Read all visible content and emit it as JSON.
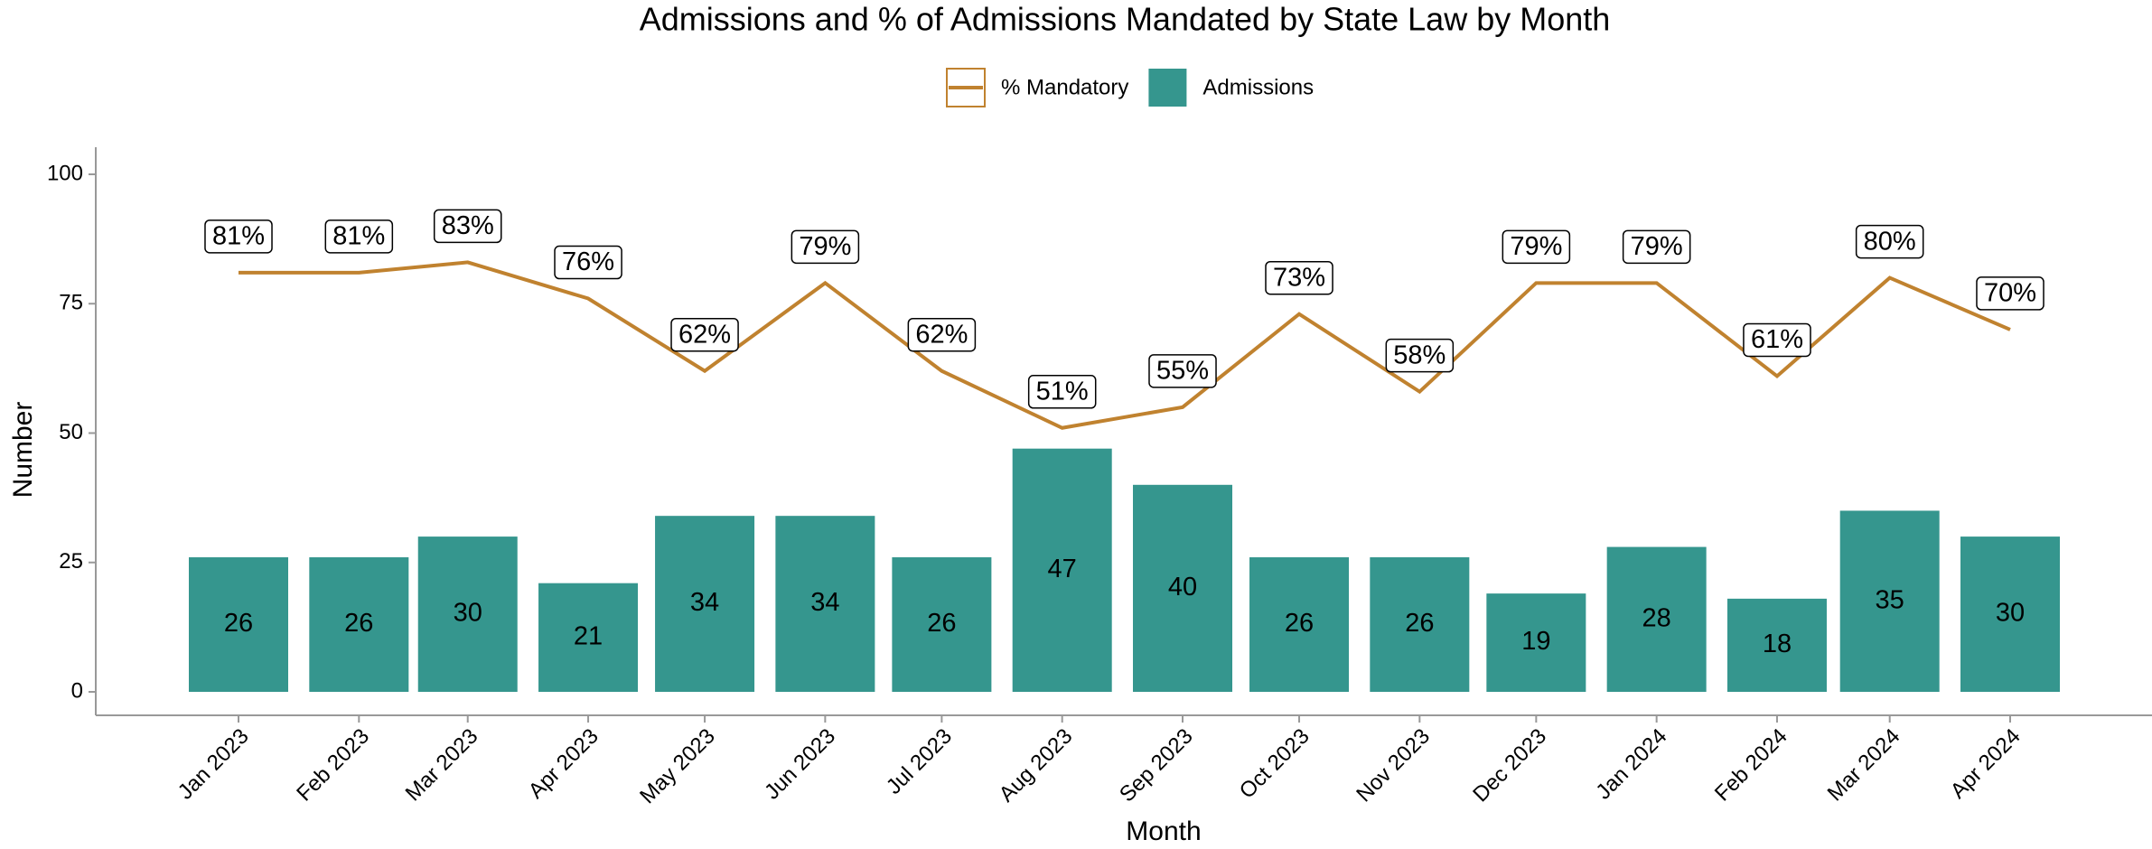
{
  "chart_data": {
    "type": "bar-line",
    "title": "Admissions and % of Admissions Mandated by State Law by Month",
    "x_label": "Month",
    "y_label": "Number",
    "x": [
      "2023-01",
      "2023-02",
      "2023-03",
      "2023-04",
      "2023-05",
      "2023-06",
      "2023-07",
      "2023-08",
      "2023-09",
      "2023-10",
      "2023-11",
      "2023-12",
      "2024-01",
      "2024-02",
      "2024-03",
      "2024-04"
    ],
    "xticks": [
      {
        "value": "2023-01",
        "label": "Jan 2023"
      },
      {
        "value": "2023-02",
        "label": "Feb 2023"
      },
      {
        "value": "2023-03",
        "label": "Mar 2023"
      },
      {
        "value": "2023-04",
        "label": "Apr 2023"
      },
      {
        "value": "2023-05",
        "label": "May 2023"
      },
      {
        "value": "2023-06",
        "label": "Jun 2023"
      },
      {
        "value": "2023-07",
        "label": "Jul 2023"
      },
      {
        "value": "2023-08",
        "label": "Aug 2023"
      },
      {
        "value": "2023-09",
        "label": "Sep 2023"
      },
      {
        "value": "2023-10",
        "label": "Oct 2023"
      },
      {
        "value": "2023-11",
        "label": "Nov 2023"
      },
      {
        "value": "2023-12",
        "label": "Dec 2023"
      },
      {
        "value": "2024-01",
        "label": "Jan 2024"
      },
      {
        "value": "2024-02",
        "label": "Feb 2024"
      },
      {
        "value": "2024-03",
        "label": "Mar 2024"
      },
      {
        "value": "2024-04",
        "label": "Apr 2024"
      }
    ],
    "series": [
      {
        "name": "% Mandatory",
        "type": "line",
        "color": "#c0822f",
        "values": [
          81,
          81,
          83,
          76,
          62,
          79,
          62,
          51,
          55,
          73,
          58,
          79,
          79,
          61,
          80,
          70
        ],
        "value_labels": [
          "81%",
          "81%",
          "83%",
          "76%",
          "62%",
          "79%",
          "62%",
          "51%",
          "55%",
          "73%",
          "58%",
          "79%",
          "79%",
          "61%",
          "80%",
          "70%"
        ]
      },
      {
        "name": "Admissions",
        "type": "bar",
        "color": "#35968e",
        "values": [
          26,
          26,
          30,
          21,
          34,
          34,
          26,
          47,
          40,
          26,
          26,
          19,
          28,
          18,
          35,
          30
        ]
      }
    ],
    "ylim": [
      0,
      100
    ],
    "yticks": [
      0,
      25,
      50,
      75,
      100
    ],
    "legend": "top"
  }
}
